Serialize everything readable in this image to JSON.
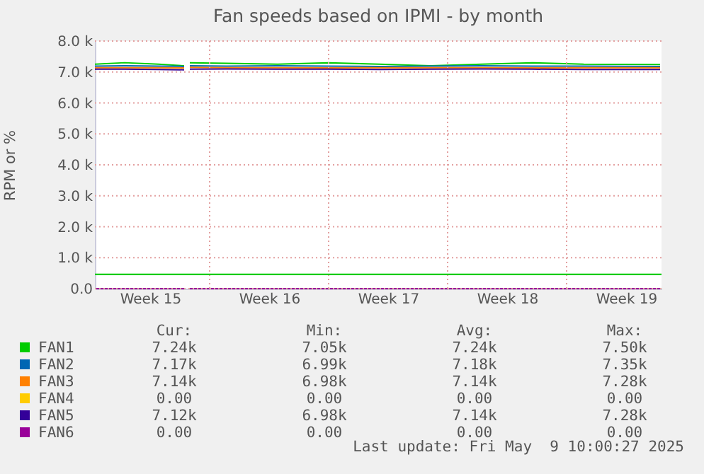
{
  "chart_data": {
    "type": "line",
    "title": "Fan speeds based on IPMI - by month",
    "ylabel": "RPM or %",
    "x": [
      "2025-04-07T06:00",
      "2025-04-09",
      "2025-04-11",
      "2025-04-12T12:00",
      "2025-04-12T16:00",
      "2025-04-12T20:00",
      "2025-04-15",
      "2025-04-18",
      "2025-04-21",
      "2025-04-24",
      "2025-04-27",
      "2025-04-30",
      "2025-05-03",
      "2025-05-06",
      "2025-05-10T12:00"
    ],
    "series": [
      {
        "name": "FAN1",
        "color": "#00cc00",
        "values": [
          7250,
          7300,
          7250,
          7200,
          null,
          7300,
          7280,
          7250,
          7300,
          7250,
          7200,
          7250,
          7300,
          7250,
          7240
        ]
      },
      {
        "name": "FAN2",
        "color": "#0066b3",
        "values": [
          7190,
          7200,
          7190,
          7180,
          null,
          7200,
          7190,
          7200,
          7190,
          7180,
          7190,
          7200,
          7190,
          7190,
          7180
        ]
      },
      {
        "name": "FAN3",
        "color": "#ff8000",
        "values": [
          7140,
          7140,
          7140,
          7130,
          null,
          7150,
          7140,
          7140,
          7130,
          7140,
          7140,
          7140,
          7130,
          7140,
          7140
        ]
      },
      {
        "name": "FAN4",
        "color": "#ffcc00",
        "values": [
          null,
          null,
          null,
          null,
          null,
          null,
          null,
          null,
          null,
          null,
          null,
          null,
          null,
          null,
          null
        ]
      },
      {
        "name": "FAN5",
        "color": "#330099",
        "values": [
          7090,
          7090,
          7080,
          7070,
          null,
          7090,
          7100,
          7090,
          7090,
          7080,
          7090,
          7100,
          7090,
          7080,
          7080
        ]
      },
      {
        "name": "FAN6",
        "color": "#990099",
        "values": [
          0,
          0,
          0,
          0,
          null,
          0,
          0,
          0,
          0,
          0,
          0,
          0,
          0,
          0,
          0
        ]
      }
    ],
    "xlim": [
      "2025-04-07T06:00",
      "2025-05-10T14:00"
    ],
    "xticks": [
      {
        "value": "2025-04-10T12:00",
        "label": "Week 15"
      },
      {
        "value": "2025-04-14",
        "label": null
      },
      {
        "value": "2025-04-17T12:00",
        "label": "Week 16"
      },
      {
        "value": "2025-04-21",
        "label": null
      },
      {
        "value": "2025-04-24T12:00",
        "label": "Week 17"
      },
      {
        "value": "2025-04-28",
        "label": null
      },
      {
        "value": "2025-05-01T12:00",
        "label": "Week 18"
      },
      {
        "value": "2025-05-05",
        "label": null
      },
      {
        "value": "2025-05-08T12:00",
        "label": "Week 19"
      }
    ],
    "ylim": [
      0,
      8000
    ],
    "yticks": [
      {
        "value": 0,
        "label": "0.0"
      },
      {
        "value": 1000,
        "label": "1.0 k"
      },
      {
        "value": 2000,
        "label": "2.0 k"
      },
      {
        "value": 3000,
        "label": "3.0 k"
      },
      {
        "value": 4000,
        "label": "4.0 k"
      },
      {
        "value": 5000,
        "label": "5.0 k"
      },
      {
        "value": 6000,
        "label": "6.0 k"
      },
      {
        "value": 7000,
        "label": "7.0 k"
      },
      {
        "value": 8000,
        "label": "8.0 k"
      }
    ],
    "ref_lines": [
      {
        "axis": "y",
        "value": 460,
        "color": "#00cc00"
      }
    ],
    "grid": true,
    "legend": "bottom",
    "line_style": "solid",
    "annotations": [
      "Cur:",
      "Min:",
      "Avg:",
      "Max:",
      "7.24k",
      "7.05k",
      "7.24k",
      "7.50k",
      "7.17k",
      "6.99k",
      "7.18k",
      "7.35k",
      "7.14k",
      "6.98k",
      "7.14k",
      "7.28k",
      "0.00",
      "0.00",
      "0.00",
      "0.00",
      "7.12k",
      "6.98k",
      "7.14k",
      "7.28k",
      "0.00",
      "0.00",
      "0.00",
      "0.00",
      "Last update: Fri May  9 10:00:27 2025"
    ]
  }
}
